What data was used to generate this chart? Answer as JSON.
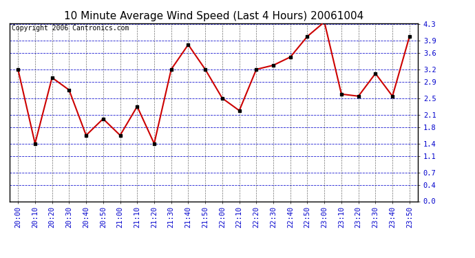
{
  "title": "10 Minute Average Wind Speed (Last 4 Hours) 20061004",
  "copyright": "Copyright 2006 Cantronics.com",
  "x_labels": [
    "20:00",
    "20:10",
    "20:20",
    "20:30",
    "20:40",
    "20:50",
    "21:00",
    "21:10",
    "21:20",
    "21:30",
    "21:40",
    "21:50",
    "22:00",
    "22:10",
    "22:20",
    "22:30",
    "22:40",
    "22:50",
    "23:00",
    "23:10",
    "23:20",
    "23:30",
    "23:40",
    "23:50"
  ],
  "y_values": [
    3.2,
    1.4,
    3.0,
    2.7,
    1.6,
    2.0,
    1.6,
    2.3,
    1.4,
    3.2,
    3.8,
    3.2,
    2.5,
    2.2,
    3.2,
    3.3,
    3.5,
    4.0,
    4.35,
    2.6,
    2.55,
    3.1,
    2.55,
    4.0
  ],
  "line_color": "#cc0000",
  "marker_color": "#000000",
  "bg_color": "#ffffff",
  "plot_bg_color": "#ffffff",
  "grid_h_color": "#0000cc",
  "grid_v_color": "#333333",
  "title_color": "#000000",
  "axis_label_color": "#0000cc",
  "border_color": "#000000",
  "ylim": [
    0.0,
    4.3
  ],
  "yticks": [
    0.0,
    0.4,
    0.7,
    1.1,
    1.4,
    1.8,
    2.1,
    2.5,
    2.9,
    3.2,
    3.6,
    3.9,
    4.3
  ],
  "title_fontsize": 11,
  "copyright_fontsize": 7,
  "tick_fontsize": 7.5
}
